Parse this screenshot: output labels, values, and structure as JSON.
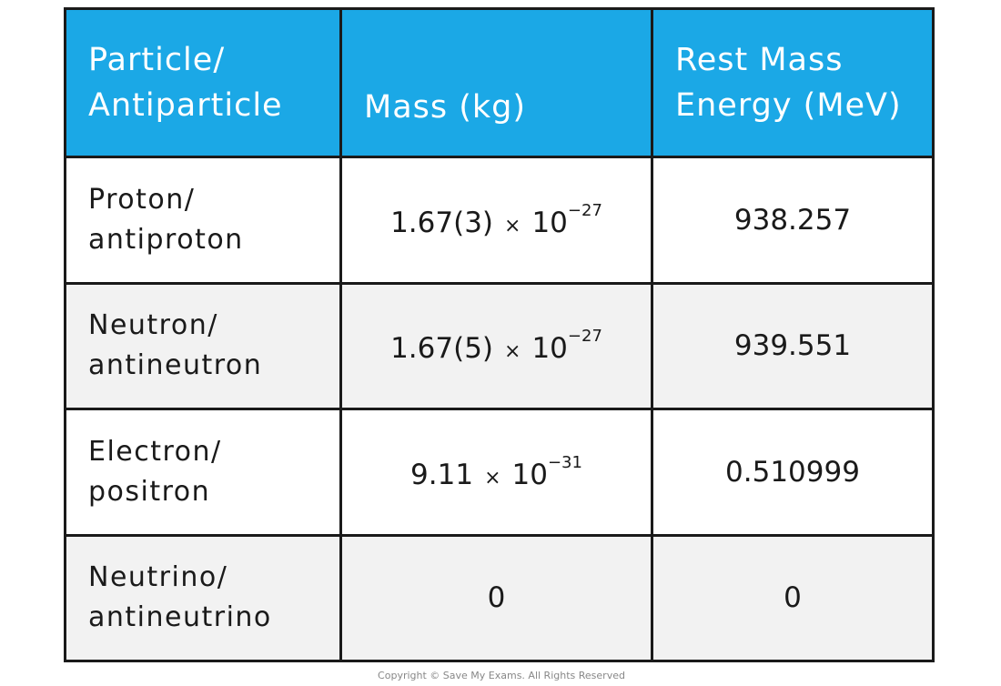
{
  "table": {
    "header": [
      [
        "Particle/",
        "Antiparticle"
      ],
      [
        "Mass (kg)"
      ],
      [
        "Rest Mass",
        "Energy (MeV)"
      ]
    ],
    "rows": [
      [
        [
          "Proton/",
          "antiproton"
        ],
        {
          "mantissa": "1.67(3)",
          "times": "×",
          "base": "10",
          "exponent": "−27"
        },
        "938.257"
      ],
      [
        [
          "Neutron/",
          "antineutron"
        ],
        {
          "mantissa": "1.67(5)",
          "times": "×",
          "base": "10",
          "exponent": "−27"
        },
        "939.551"
      ],
      [
        [
          "Electron/",
          "positron"
        ],
        {
          "mantissa": "9.11",
          "times": "×",
          "base": "10",
          "exponent": "−31"
        },
        "0.510999"
      ],
      [
        [
          "Neutrino/",
          "antineutrino"
        ],
        "0",
        "0"
      ]
    ]
  },
  "footer": {
    "copyright": "Copyright © Save My Exams. All Rights Reserved"
  }
}
